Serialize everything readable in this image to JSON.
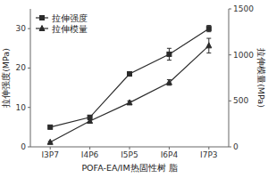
{
  "chart_data": {
    "type": "line",
    "categories": [
      "I3P7",
      "I4P6",
      "I5P5",
      "I6P4",
      "I7P3"
    ],
    "xlabel": "POFA-EA/IM热固性树 脂",
    "ylabel": "拉伸强度(MPa)",
    "y2label": "拉伸模量(MPa)",
    "ylim": [
      0,
      35
    ],
    "yticks": [
      0,
      10,
      20,
      30
    ],
    "y2lim": [
      0,
      1500
    ],
    "y2ticks": [
      0,
      500,
      1000,
      1500
    ],
    "grid": false,
    "legend": "upper left",
    "series": [
      {
        "name": "拉伸强度",
        "color": "#2b2b2b",
        "marker": "square",
        "values": [
          5.0,
          7.5,
          18.5,
          23.5,
          30.0
        ],
        "errors": [
          0.3,
          0.4,
          0.5,
          1.5,
          0.8
        ]
      },
      {
        "name": "拉伸模量",
        "color": "#2b2b2b",
        "marker": "triangle",
        "axis": "y2",
        "values": [
          50,
          280,
          480,
          700,
          1100
        ],
        "errors": [
          10,
          15,
          20,
          30,
          80
        ]
      }
    ]
  }
}
